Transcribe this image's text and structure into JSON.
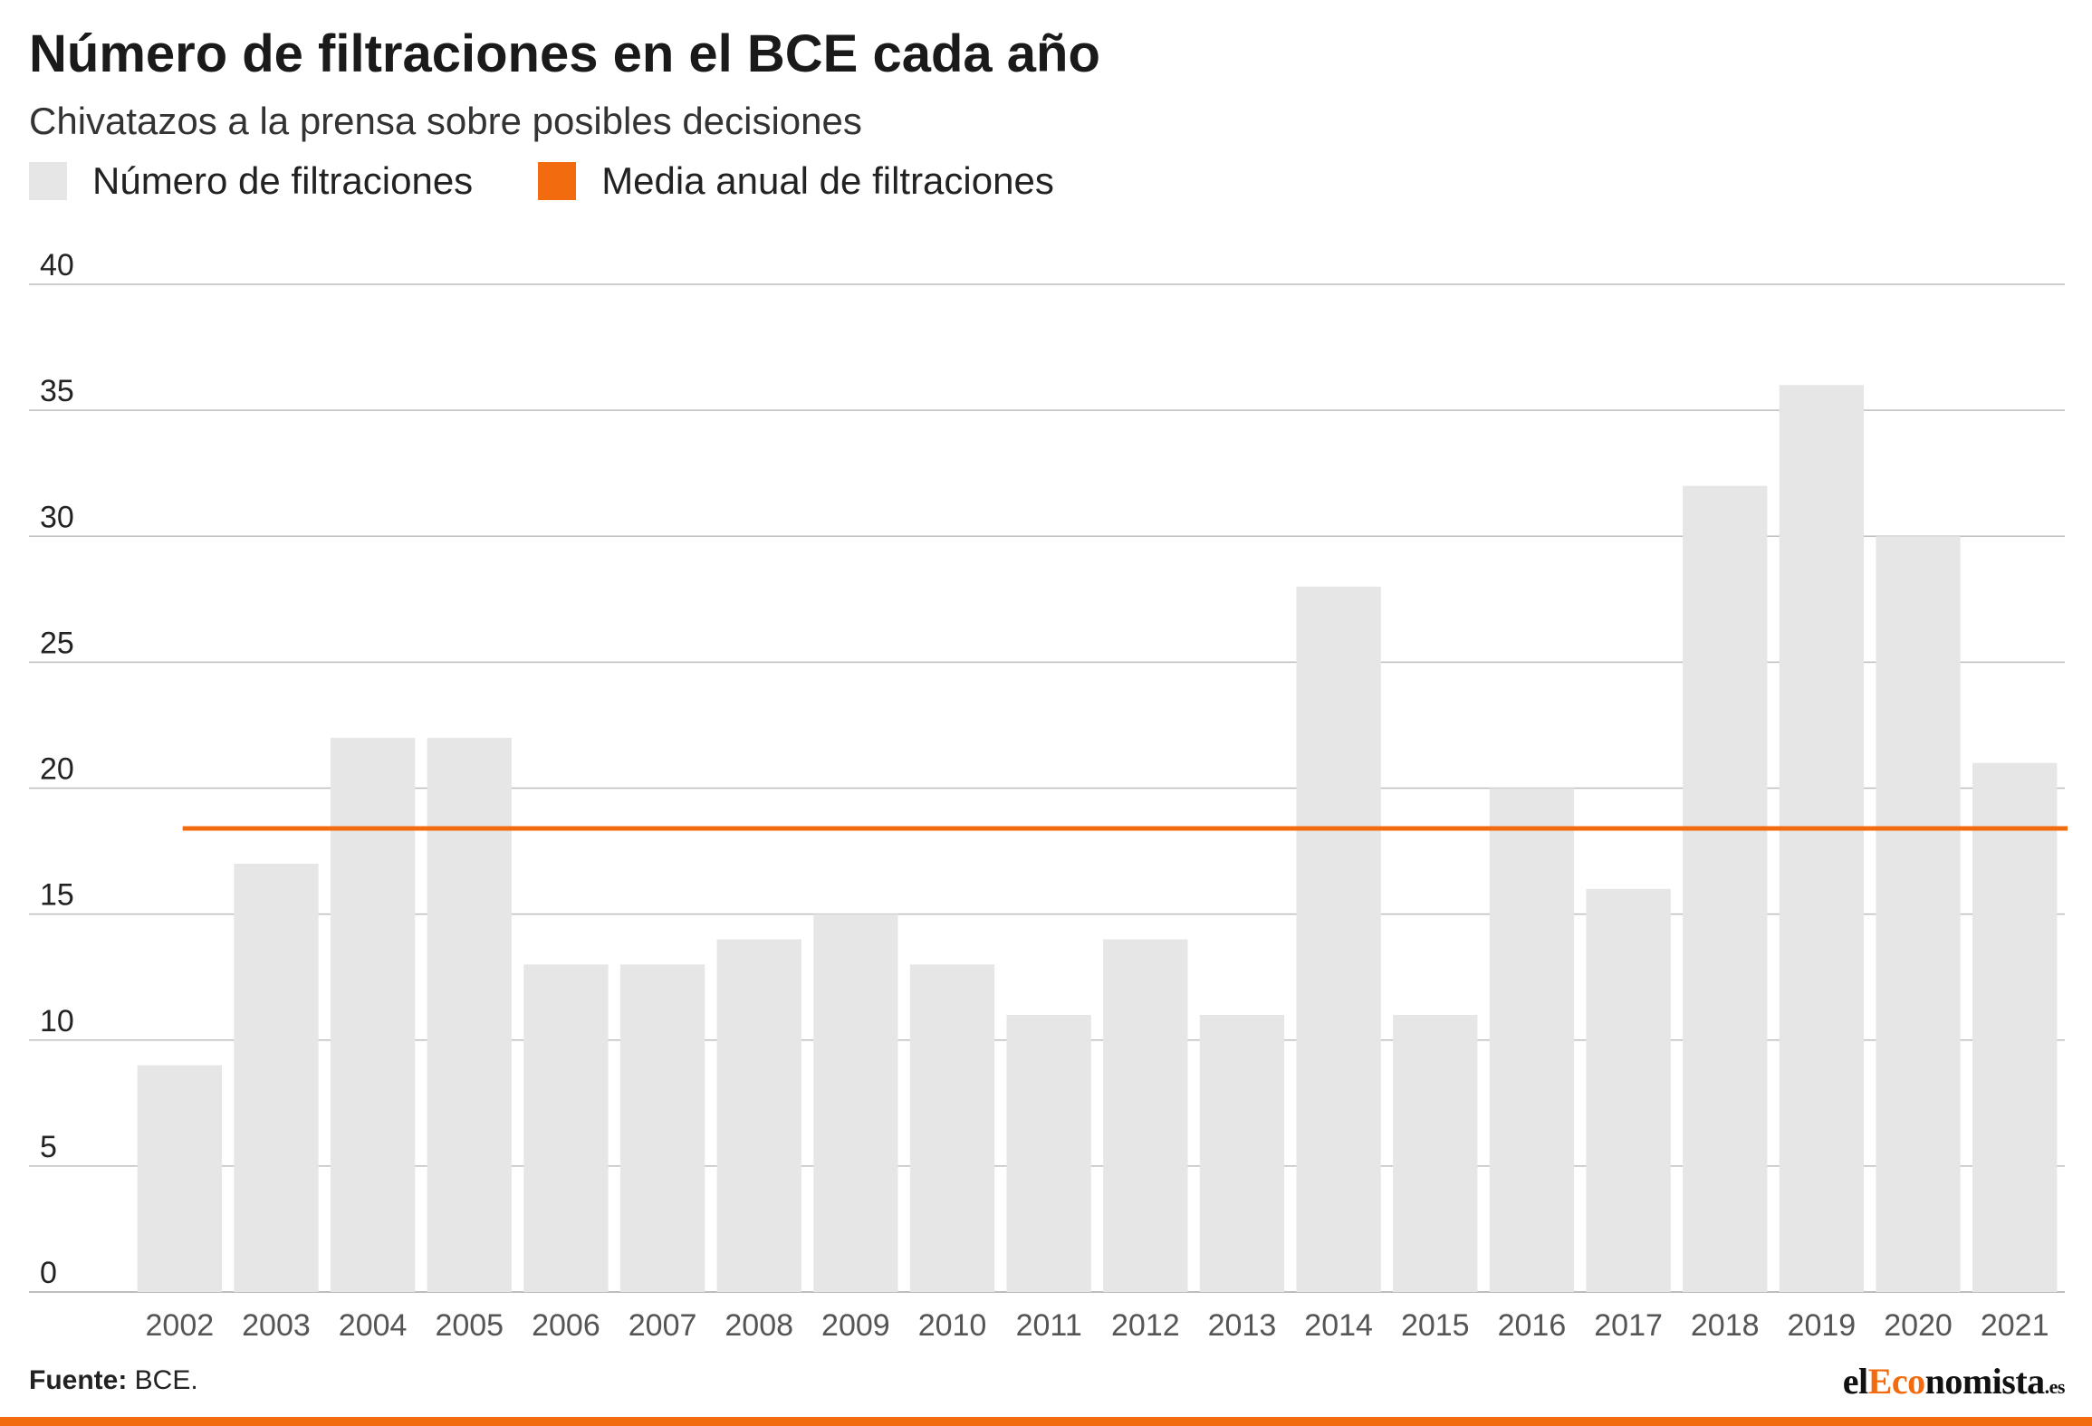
{
  "header": {
    "title": "Número de filtraciones en el BCE cada año",
    "subtitle": "Chivatazos a la prensa sobre posibles decisiones"
  },
  "legend": {
    "bars_label": "Número de filtraciones",
    "line_label": "Media anual de filtraciones"
  },
  "footer": {
    "source_label": "Fuente:",
    "source_value": "BCE.",
    "logo_prefix": "el",
    "logo_accent": "Eco",
    "logo_rest": "nomista",
    "logo_suffix": ".es"
  },
  "colors": {
    "bar": "#e6e6e6",
    "line": "#f26b0f",
    "grid": "#bdbdbd",
    "axis_text": "#555555",
    "brand": "#f26b0f"
  },
  "chart_data": {
    "type": "bar",
    "categories": [
      "2002",
      "2003",
      "2004",
      "2005",
      "2006",
      "2007",
      "2008",
      "2009",
      "2010",
      "2011",
      "2012",
      "2013",
      "2014",
      "2015",
      "2016",
      "2017",
      "2018",
      "2019",
      "2020",
      "2021"
    ],
    "series": [
      {
        "name": "Número de filtraciones",
        "values": [
          9,
          17,
          22,
          22,
          13,
          13,
          14,
          15,
          13,
          11,
          14,
          11,
          28,
          11,
          20,
          16,
          32,
          36,
          30,
          21
        ]
      }
    ],
    "reference_line": {
      "name": "Media anual de filtraciones",
      "value": 18.4
    },
    "ylim": [
      0,
      40
    ],
    "yticks": [
      0,
      5,
      10,
      15,
      20,
      25,
      30,
      35,
      40
    ],
    "grid": true,
    "legend_position": "top-left"
  }
}
